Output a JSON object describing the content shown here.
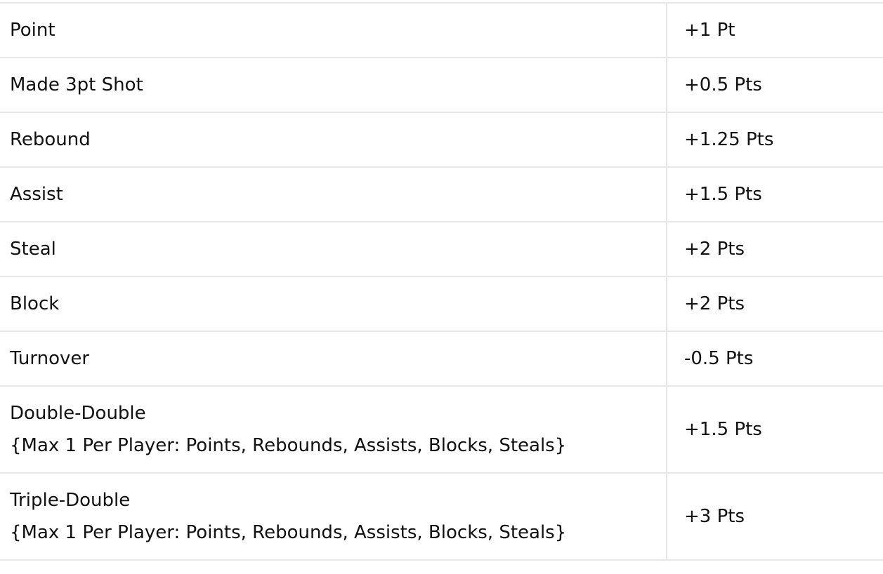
{
  "scoring_table": {
    "rows": [
      {
        "stat": "Point",
        "points": "+1 Pt",
        "note": ""
      },
      {
        "stat": "Made 3pt Shot",
        "points": "+0.5 Pts",
        "note": ""
      },
      {
        "stat": "Rebound",
        "points": "+1.25 Pts",
        "note": ""
      },
      {
        "stat": "Assist",
        "points": "+1.5 Pts",
        "note": ""
      },
      {
        "stat": "Steal",
        "points": "+2 Pts",
        "note": ""
      },
      {
        "stat": "Block",
        "points": "+2 Pts",
        "note": ""
      },
      {
        "stat": "Turnover",
        "points": "-0.5 Pts",
        "note": ""
      },
      {
        "stat": "Double-Double",
        "points": "+1.5 Pts",
        "note": "{Max 1 Per Player: Points, Rebounds, Assists, Blocks, Steals}"
      },
      {
        "stat": "Triple-Double",
        "points": "+3 Pts",
        "note": "{Max 1 Per Player: Points, Rebounds, Assists, Blocks, Steals}"
      }
    ]
  },
  "colors": {
    "border": "#e6e6e6",
    "text": "#111111",
    "background": "#ffffff"
  }
}
